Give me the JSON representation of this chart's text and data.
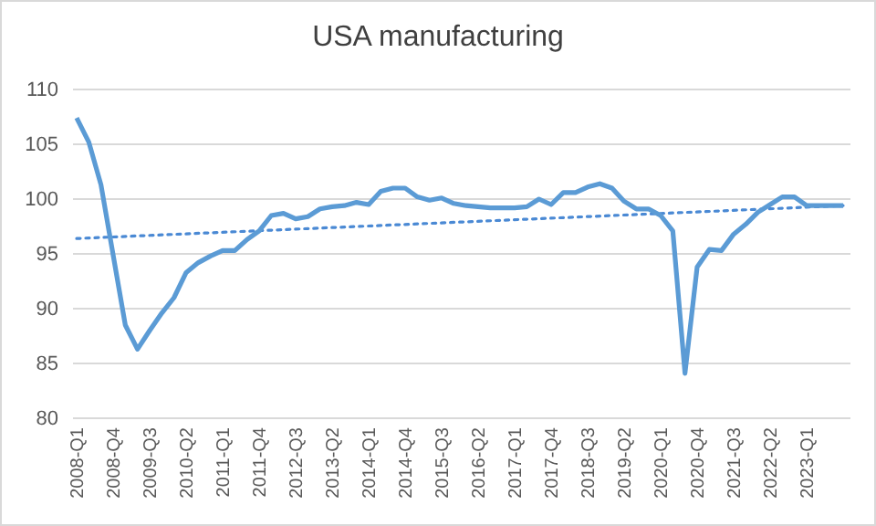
{
  "chart_data": {
    "type": "line",
    "title": "USA manufacturing",
    "categories": [
      "2008-Q1",
      null,
      null,
      "2008-Q4",
      null,
      null,
      "2009-Q3",
      null,
      null,
      "2010-Q2",
      null,
      null,
      "2011-Q1",
      null,
      null,
      "2011-Q4",
      null,
      null,
      "2012-Q3",
      null,
      null,
      "2013-Q2",
      null,
      null,
      "2014-Q1",
      null,
      null,
      "2014-Q4",
      null,
      null,
      "2015-Q3",
      null,
      null,
      "2016-Q2",
      null,
      null,
      "2017-Q1",
      null,
      null,
      "2017-Q4",
      null,
      null,
      "2018-Q3",
      null,
      null,
      "2019-Q2",
      null,
      null,
      "2020-Q1",
      null,
      null,
      "2020-Q4",
      null,
      null,
      "2021-Q3",
      null,
      null,
      "2022-Q2",
      null,
      null,
      "2023-Q1",
      null,
      null,
      null
    ],
    "series": [
      {
        "color": "#5b9bd5",
        "values": [
          107.4,
          105.2,
          101.3,
          94.9,
          88.5,
          86.3,
          88,
          89.6,
          91,
          93.3,
          94.2,
          94.8,
          95.3,
          95.3,
          96.3,
          97.1,
          98.5,
          98.7,
          98.2,
          98.4,
          99.1,
          99.3,
          99.4,
          99.7,
          99.5,
          100.7,
          101,
          101,
          100.2,
          99.9,
          100.1,
          99.6,
          99.4,
          99.3,
          99.2,
          99.2,
          99.2,
          99.3,
          100,
          99.5,
          100.6,
          100.6,
          101.1,
          101.4,
          101,
          99.8,
          99.1,
          99.1,
          98.5,
          97.1,
          84.1,
          93.8,
          95.4,
          95.3,
          96.8,
          97.7,
          98.8,
          99.5,
          100.2,
          100.2,
          99.4,
          99.4,
          99.4,
          99.4
        ]
      },
      {
        "color": "#4a89d4",
        "line_style": "dotted",
        "values": [
          96.4,
          null,
          null,
          null,
          null,
          null,
          null,
          null,
          null,
          null,
          null,
          null,
          null,
          null,
          null,
          null,
          null,
          null,
          null,
          null,
          null,
          null,
          null,
          null,
          null,
          null,
          null,
          null,
          null,
          null,
          null,
          null,
          null,
          null,
          null,
          null,
          null,
          null,
          null,
          null,
          null,
          null,
          null,
          null,
          null,
          null,
          null,
          null,
          null,
          null,
          null,
          null,
          null,
          null,
          null,
          null,
          null,
          null,
          null,
          null,
          null,
          null,
          null,
          99.4
        ]
      }
    ],
    "ylim": [
      80,
      110
    ],
    "yticks": [
      80,
      85,
      90,
      95,
      100,
      105,
      110
    ],
    "grid": "y",
    "line_style": "solid",
    "marker": "none"
  }
}
